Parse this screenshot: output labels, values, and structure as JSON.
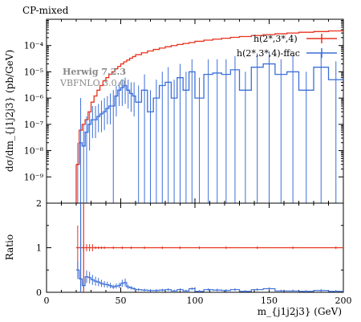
{
  "chart_data": {
    "type": "line",
    "title": "CP-mixed",
    "annotation": {
      "line1": "Herwig 7.2.3",
      "line2": "VBFNLO 3.0.0"
    },
    "xlabel": "m_{j1j2j3} (GeV)",
    "ylabel": "dσ/dm_{j1j2j3} (pb/GeV)",
    "ratio_ylabel": "Ratio",
    "xlim": [
      0,
      200
    ],
    "ylim_log": [
      1e-10,
      0.001
    ],
    "ratio_ylim": [
      0,
      2
    ],
    "x_ticks": [
      0,
      50,
      100,
      150,
      200
    ],
    "y_ticks_main": [
      {
        "value": 1e-09,
        "label": "10⁻⁹"
      },
      {
        "value": 1e-08,
        "label": "10⁻⁸"
      },
      {
        "value": 1e-07,
        "label": "10⁻⁷"
      },
      {
        "value": 1e-06,
        "label": "10⁻⁶"
      },
      {
        "value": 1e-05,
        "label": "10⁻⁵"
      },
      {
        "value": 0.0001,
        "label": "10⁻⁴"
      }
    ],
    "y_ticks_ratio": [
      0,
      0.5,
      1,
      1.5,
      2
    ],
    "legend_position": "top-right",
    "series": [
      {
        "name": "h(2*,3*,4)",
        "color": "#e8321e",
        "bins": [
          [
            20,
            22,
            3e-09
          ],
          [
            22,
            24,
            6e-08
          ],
          [
            24,
            26,
            1e-07
          ],
          [
            26,
            28,
            1.5e-07
          ],
          [
            28,
            30,
            3e-07
          ],
          [
            30,
            32,
            7e-07
          ],
          [
            32,
            34,
            1.2e-06
          ],
          [
            34,
            36,
            2e-06
          ],
          [
            36,
            38,
            3e-06
          ],
          [
            38,
            40,
            4.5e-06
          ],
          [
            40,
            42,
            6e-06
          ],
          [
            42,
            44,
            8e-06
          ],
          [
            44,
            46,
            1e-05
          ],
          [
            46,
            48,
            1.3e-05
          ],
          [
            48,
            50,
            1.6e-05
          ],
          [
            50,
            52,
            2e-05
          ],
          [
            52,
            54,
            2.4e-05
          ],
          [
            54,
            56,
            2.8e-05
          ],
          [
            56,
            58,
            3.3e-05
          ],
          [
            58,
            60,
            3.8e-05
          ],
          [
            60,
            64,
            4.5e-05
          ],
          [
            64,
            68,
            5.3e-05
          ],
          [
            68,
            72,
            6.2e-05
          ],
          [
            72,
            76,
            7.1e-05
          ],
          [
            76,
            80,
            8e-05
          ],
          [
            80,
            84,
            9e-05
          ],
          [
            84,
            88,
            0.0001
          ],
          [
            88,
            92,
            0.00011
          ],
          [
            92,
            96,
            0.00012
          ],
          [
            96,
            100,
            0.00013
          ],
          [
            100,
            106,
            0.000145
          ],
          [
            106,
            112,
            0.00016
          ],
          [
            112,
            118,
            0.000175
          ],
          [
            118,
            124,
            0.00019
          ],
          [
            124,
            130,
            0.000205
          ],
          [
            130,
            138,
            0.00022
          ],
          [
            138,
            146,
            0.00024
          ],
          [
            146,
            154,
            0.00026
          ],
          [
            154,
            162,
            0.00028
          ],
          [
            162,
            170,
            0.0003
          ],
          [
            170,
            180,
            0.00032
          ],
          [
            180,
            190,
            0.00034
          ],
          [
            190,
            200,
            0.00036
          ]
        ],
        "ratio": 1
      },
      {
        "name": "h(2*,3*,4)-ffac",
        "color": "#3c6fd8",
        "bins": [
          [
            20,
            22,
            3e-09,
            1e-10,
            2e-08
          ],
          [
            22,
            24,
            2e-08,
            1e-10,
            1e-06
          ],
          [
            24,
            26,
            1.5e-08,
            1e-10,
            1e-07
          ],
          [
            26,
            28,
            5e-08,
            1e-10,
            2e-07
          ],
          [
            28,
            30,
            1e-07,
            1e-08,
            3e-07
          ],
          [
            30,
            32,
            1.5e-07,
            3e-08,
            5e-07
          ],
          [
            32,
            34,
            1.5e-07,
            3e-08,
            5e-07
          ],
          [
            34,
            36,
            2e-07,
            5e-08,
            6e-07
          ],
          [
            36,
            38,
            2.5e-07,
            5e-08,
            8e-07
          ],
          [
            38,
            40,
            3e-07,
            6e-08,
            1e-06
          ],
          [
            40,
            42,
            4e-07,
            1e-07,
            1.2e-06
          ],
          [
            42,
            44,
            5e-07,
            1e-07,
            1.5e-06
          ],
          [
            44,
            46,
            5e-07,
            1e-10,
            2e-06
          ],
          [
            46,
            48,
            1.2e-06,
            2e-07,
            3e-06
          ],
          [
            48,
            50,
            2e-06,
            5e-07,
            4e-06
          ],
          [
            50,
            52,
            2.5e-06,
            5e-07,
            5e-06
          ],
          [
            52,
            54,
            3e-06,
            6e-07,
            6e-06
          ],
          [
            54,
            56,
            2e-06,
            4e-07,
            5e-06
          ],
          [
            56,
            58,
            1.5e-06,
            3e-07,
            4e-06
          ],
          [
            58,
            60,
            1.2e-06,
            2e-07,
            4e-06
          ],
          [
            60,
            64,
            7e-07,
            1e-10,
            3e-06
          ],
          [
            64,
            68,
            2e-06,
            1e-10,
            8e-06
          ],
          [
            68,
            72,
            3e-07,
            1e-10,
            2e-06
          ],
          [
            72,
            76,
            1e-06,
            1e-10,
            5e-06
          ],
          [
            76,
            80,
            3e-06,
            1e-10,
            1e-05
          ],
          [
            80,
            84,
            4e-06,
            1e-10,
            1.5e-05
          ],
          [
            84,
            88,
            1e-06,
            1e-10,
            5e-06
          ],
          [
            88,
            92,
            6e-06,
            1e-10,
            2e-05
          ],
          [
            92,
            96,
            2e-06,
            1e-10,
            1e-05
          ],
          [
            96,
            100,
            1e-05,
            1e-10,
            3e-05
          ],
          [
            100,
            106,
            1e-06,
            1e-10,
            6e-06
          ],
          [
            106,
            112,
            8e-06,
            1e-10,
            3e-05
          ],
          [
            112,
            118,
            9e-06,
            1e-10,
            3e-05
          ],
          [
            118,
            124,
            8e-06,
            1e-10,
            3e-05
          ],
          [
            124,
            130,
            1.2e-05,
            1e-10,
            4e-05
          ],
          [
            130,
            138,
            2e-06,
            1e-10,
            1e-05
          ],
          [
            138,
            146,
            1.5e-05,
            1e-10,
            5e-05
          ],
          [
            146,
            154,
            2e-05,
            1e-10,
            6e-05
          ],
          [
            154,
            162,
            8e-06,
            1e-10,
            3e-05
          ],
          [
            162,
            170,
            1e-05,
            1e-10,
            4e-05
          ],
          [
            170,
            180,
            2e-06,
            1e-10,
            1e-05
          ],
          [
            180,
            190,
            1.5e-05,
            1e-10,
            5e-05
          ],
          [
            190,
            200,
            5e-06,
            1e-10,
            2.5e-05
          ]
        ],
        "ratio_bins": [
          [
            20,
            22,
            0.5
          ],
          [
            22,
            24,
            0.3
          ],
          [
            24,
            26,
            0.15
          ],
          [
            26,
            28,
            0.35
          ],
          [
            28,
            30,
            0.33
          ],
          [
            30,
            32,
            0.28
          ],
          [
            32,
            34,
            0.25
          ],
          [
            34,
            36,
            0.23
          ],
          [
            36,
            38,
            0.2
          ],
          [
            38,
            40,
            0.18
          ],
          [
            40,
            42,
            0.17
          ],
          [
            42,
            44,
            0.15
          ],
          [
            44,
            46,
            0.12
          ],
          [
            46,
            48,
            0.14
          ],
          [
            48,
            50,
            0.15
          ],
          [
            50,
            52,
            0.2
          ],
          [
            52,
            54,
            0.22
          ],
          [
            54,
            56,
            0.12
          ],
          [
            56,
            58,
            0.1
          ],
          [
            58,
            60,
            0.08
          ],
          [
            60,
            64,
            0.06
          ],
          [
            64,
            68,
            0.05
          ],
          [
            68,
            72,
            0.04
          ],
          [
            72,
            76,
            0.04
          ],
          [
            76,
            80,
            0.05
          ],
          [
            80,
            84,
            0.06
          ],
          [
            84,
            88,
            0.03
          ],
          [
            88,
            92,
            0.06
          ],
          [
            92,
            96,
            0.03
          ],
          [
            96,
            100,
            0.08
          ],
          [
            100,
            106,
            0.02
          ],
          [
            106,
            112,
            0.06
          ],
          [
            112,
            118,
            0.05
          ],
          [
            118,
            124,
            0.04
          ],
          [
            124,
            130,
            0.06
          ],
          [
            130,
            138,
            0.02
          ],
          [
            138,
            146,
            0.06
          ],
          [
            146,
            154,
            0.08
          ],
          [
            154,
            162,
            0.03
          ],
          [
            162,
            170,
            0.03
          ],
          [
            170,
            180,
            0.02
          ],
          [
            180,
            190,
            0.04
          ],
          [
            190,
            200,
            0.02
          ]
        ]
      }
    ]
  }
}
